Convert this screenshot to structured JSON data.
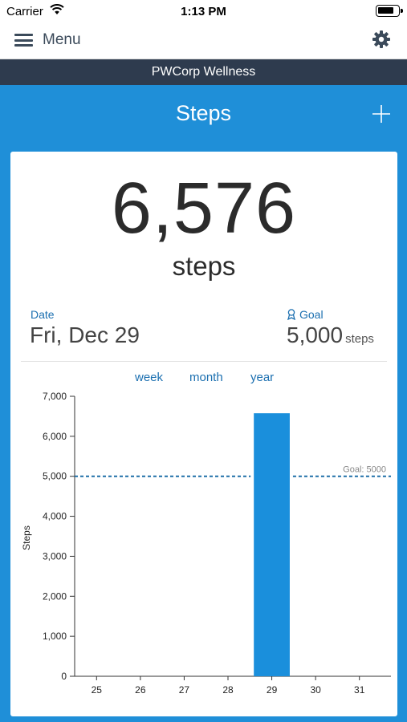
{
  "status_bar": {
    "carrier": "Carrier",
    "time": "1:13 PM"
  },
  "nav": {
    "menu_label": "Menu",
    "menu_icon": "hamburger-icon",
    "settings_icon": "gear-icon"
  },
  "org_bar": {
    "title": "PWCorp Wellness"
  },
  "header": {
    "title": "Steps",
    "add_icon": "plus-icon"
  },
  "summary": {
    "value": "6,576",
    "unit": "steps",
    "date_label": "Date",
    "date_value": "Fri, Dec 29",
    "goal_label": "Goal",
    "goal_value": "5,000",
    "goal_unit": "steps"
  },
  "range_tabs": [
    "week",
    "month",
    "year"
  ],
  "colors": {
    "accent": "#1f8fd8",
    "org_bar": "#2e3b4e",
    "link": "#1b6fb0",
    "bar": "#1a8fdc",
    "goal_line": "#1e6fa8"
  },
  "chart_data": {
    "type": "bar",
    "categories": [
      "25",
      "26",
      "27",
      "28",
      "29",
      "30",
      "31"
    ],
    "values": [
      0,
      0,
      0,
      0,
      6576,
      0,
      0
    ],
    "ylabel": "Steps",
    "ylim": [
      0,
      7000
    ],
    "yticks": [
      "0",
      "1,000",
      "2,000",
      "3,000",
      "4,000",
      "5,000",
      "6,000",
      "7,000"
    ],
    "goal": {
      "value": 5000,
      "label": "Goal: 5000"
    },
    "grid": false
  }
}
